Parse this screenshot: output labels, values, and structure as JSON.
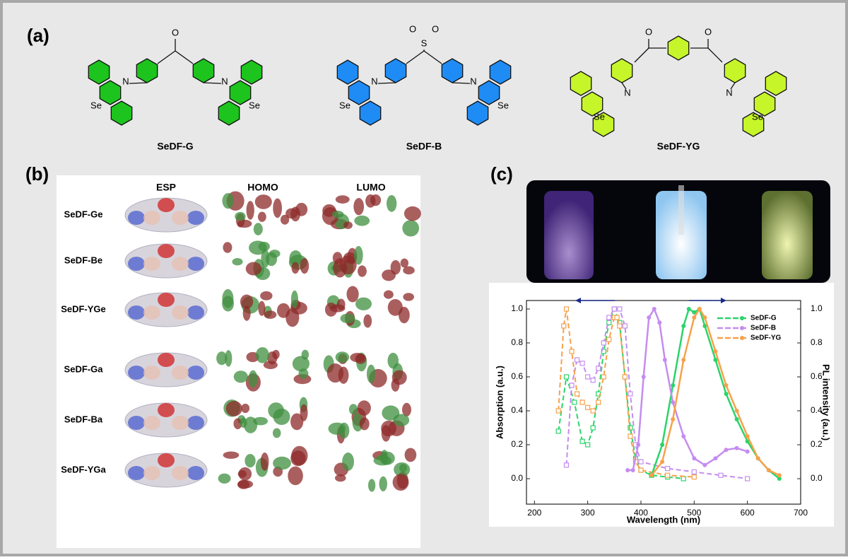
{
  "panels": {
    "a": "(a)",
    "b": "(b)",
    "c": "(c)"
  },
  "structures": [
    {
      "name": "SeDF-G",
      "color": "#1dc41d",
      "atoms": [
        "O",
        "N",
        "Se",
        "N",
        "Se"
      ]
    },
    {
      "name": "SeDF-B",
      "color": "#1f8cf5",
      "atoms": [
        "S",
        "O",
        "O",
        "N",
        "Se",
        "N",
        "Se"
      ]
    },
    {
      "name": "SeDF-YG",
      "color": "#c6f52a",
      "atoms": [
        "O",
        "O",
        "N",
        "Se",
        "N",
        "Se"
      ]
    }
  ],
  "orbitals": {
    "columns": [
      "ESP",
      "HOMO",
      "LUMO"
    ],
    "rows": [
      "SeDF-Ge",
      "SeDF-Be",
      "SeDF-YGe",
      "SeDF-Ga",
      "SeDF-Ba",
      "SeDF-YGa"
    ]
  },
  "chart_data": {
    "type": "line",
    "xlabel": "Wavelength (nm)",
    "ylabel": "Absorption (a.u.)",
    "y2label": "PL intensity (a.u.)",
    "xlim": [
      185,
      700
    ],
    "xticks": [
      200,
      300,
      400,
      500,
      600,
      700
    ],
    "ylim": [
      -0.15,
      1.05
    ],
    "yticks": [
      {
        "value": 0,
        "label": "0.0"
      },
      0.2,
      0.4,
      0.6,
      0.8,
      {
        "value": 1,
        "label": "1.0"
      }
    ],
    "y2lim": [
      -0.15,
      1.05
    ],
    "y2ticks": [
      {
        "value": 0,
        "label": "0.0"
      },
      0.2,
      0.4,
      0.6,
      0.8,
      {
        "value": 1,
        "label": "1.0"
      }
    ],
    "series": [
      {
        "name": "SeDF-G",
        "color": "#2ad46a",
        "x": [
          245,
          260,
          275,
          290,
          300,
          310,
          320,
          330,
          340,
          350,
          360,
          370,
          380,
          390,
          400,
          420,
          450,
          480
        ],
        "values": [
          0.28,
          0.6,
          0.45,
          0.22,
          0.2,
          0.3,
          0.5,
          0.75,
          0.92,
          1.0,
          0.92,
          0.6,
          0.3,
          0.12,
          0.05,
          0.02,
          0.01,
          0.0
        ]
      },
      {
        "name": "SeDF-B",
        "color": "#c58cf0",
        "x": [
          260,
          270,
          280,
          290,
          300,
          310,
          320,
          330,
          340,
          350,
          360,
          370,
          380,
          390,
          400,
          450,
          500,
          550,
          600
        ],
        "values": [
          0.08,
          0.55,
          0.7,
          0.68,
          0.6,
          0.58,
          0.65,
          0.8,
          0.95,
          1.0,
          1.0,
          0.9,
          0.5,
          0.2,
          0.1,
          0.06,
          0.04,
          0.02,
          0.0
        ]
      },
      {
        "name": "SeDF-YG",
        "color": "#f7a14a",
        "x": [
          245,
          255,
          260,
          270,
          280,
          290,
          300,
          310,
          320,
          330,
          340,
          350,
          355,
          360,
          370,
          380,
          390,
          400,
          450,
          500
        ],
        "values": [
          0.4,
          0.9,
          1.0,
          0.75,
          0.5,
          0.45,
          0.42,
          0.4,
          0.45,
          0.6,
          0.82,
          0.95,
          0.95,
          0.9,
          0.6,
          0.25,
          0.1,
          0.05,
          0.02,
          0.01
        ]
      },
      {
        "color": "#2ad46a",
        "axis": "y2",
        "x": [
          420,
          440,
          460,
          480,
          490,
          500,
          510,
          520,
          540,
          560,
          580,
          600,
          620,
          640,
          660
        ],
        "values": [
          0.02,
          0.2,
          0.55,
          0.9,
          1.0,
          0.98,
          1.0,
          0.9,
          0.7,
          0.5,
          0.35,
          0.22,
          0.12,
          0.05,
          0.0
        ]
      },
      {
        "color": "#c58cf0",
        "axis": "y2",
        "x": [
          375,
          385,
          395,
          405,
          415,
          425,
          435,
          445,
          460,
          480,
          500,
          520,
          540,
          560,
          580,
          600
        ],
        "values": [
          0.05,
          0.05,
          0.2,
          0.6,
          0.95,
          1.0,
          0.92,
          0.7,
          0.45,
          0.25,
          0.12,
          0.08,
          0.12,
          0.17,
          0.18,
          0.16
        ]
      },
      {
        "color": "#f7a14a",
        "axis": "y2",
        "x": [
          420,
          440,
          460,
          480,
          500,
          510,
          520,
          540,
          560,
          580,
          600,
          620,
          640,
          660
        ],
        "values": [
          0.02,
          0.1,
          0.35,
          0.7,
          0.95,
          1.0,
          0.95,
          0.75,
          0.55,
          0.4,
          0.25,
          0.12,
          0.05,
          0.02
        ]
      }
    ]
  }
}
